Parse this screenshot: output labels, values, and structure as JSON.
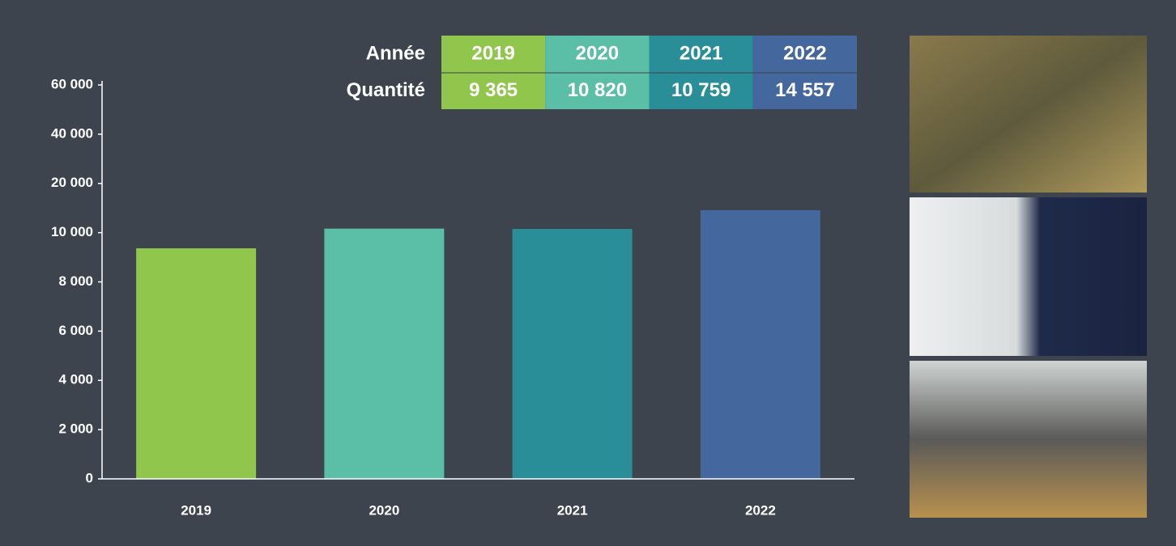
{
  "chart_data": {
    "type": "bar",
    "categories": [
      "2019",
      "2020",
      "2021",
      "2022"
    ],
    "values": [
      9365,
      10820,
      10759,
      14557
    ],
    "value_labels": [
      "9 365",
      "10 820",
      "10 759",
      "14 557"
    ],
    "colors": [
      "#8fc64b",
      "#5bbea6",
      "#2a8e98",
      "#44679d"
    ],
    "ylim": [
      0,
      60000
    ],
    "yticks": [
      0,
      {
        "value": 2000,
        "label": "2 000"
      },
      {
        "value": 4000,
        "label": "4 000"
      },
      {
        "value": 6000,
        "label": "6 000"
      },
      {
        "value": 8000,
        "label": "8 000"
      },
      {
        "value": 10000,
        "label": "10 000"
      },
      {
        "value": 20000,
        "label": "20 000"
      },
      {
        "value": 40000,
        "label": "40 000"
      },
      {
        "value": 60000,
        "label": "60 000"
      }
    ],
    "table": {
      "row_labels": [
        "Année",
        "Quantité"
      ]
    }
  }
}
